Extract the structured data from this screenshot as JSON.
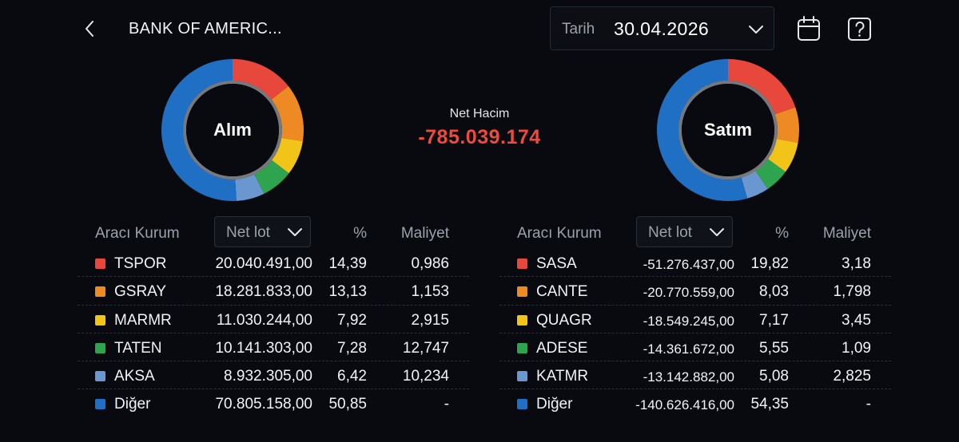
{
  "header": {
    "title": "BANK OF AMERIC...",
    "date_label": "Tarih",
    "date_value": "30.04.2026"
  },
  "net_volume": {
    "label": "Net Hacim",
    "value": "-785.039.174"
  },
  "colors": {
    "background": "#080a10",
    "negative": "#ef4a3c",
    "series": [
      "#e8473b",
      "#ee8a24",
      "#f2c318",
      "#2ea44f",
      "#6a97cf",
      "#1f6fc5"
    ]
  },
  "buy": {
    "donut_label": "Alım",
    "columns": {
      "broker": "Aracı Kurum",
      "lot": "Net lot",
      "pct": "%",
      "cost": "Maliyet"
    },
    "rows": [
      {
        "symbol": "TSPOR",
        "lot": "20.040.491,00",
        "pct": "14,39",
        "cost": "0,986"
      },
      {
        "symbol": "GSRAY",
        "lot": "18.281.833,00",
        "pct": "13,13",
        "cost": "1,153"
      },
      {
        "symbol": "MARMR",
        "lot": "11.030.244,00",
        "pct": "7,92",
        "cost": "2,915"
      },
      {
        "symbol": "TATEN",
        "lot": "10.141.303,00",
        "pct": "7,28",
        "cost": "12,747"
      },
      {
        "symbol": "AKSA",
        "lot": "8.932.305,00",
        "pct": "6,42",
        "cost": "10,234"
      },
      {
        "symbol": "Diğer",
        "lot": "70.805.158,00",
        "pct": "50,85",
        "cost": "-"
      }
    ],
    "shares": [
      14.39,
      13.13,
      7.92,
      7.28,
      6.42,
      50.85
    ]
  },
  "sell": {
    "donut_label": "Satım",
    "columns": {
      "broker": "Aracı Kurum",
      "lot": "Net lot",
      "pct": "%",
      "cost": "Maliyet"
    },
    "rows": [
      {
        "symbol": "SASA",
        "lot": "-51.276.437,00",
        "pct": "19,82",
        "cost": "3,18"
      },
      {
        "symbol": "CANTE",
        "lot": "-20.770.559,00",
        "pct": "8,03",
        "cost": "1,798"
      },
      {
        "symbol": "QUAGR",
        "lot": "-18.549.245,00",
        "pct": "7,17",
        "cost": "3,45"
      },
      {
        "symbol": "ADESE",
        "lot": "-14.361.672,00",
        "pct": "5,55",
        "cost": "1,09"
      },
      {
        "symbol": "KATMR",
        "lot": "-13.142.882,00",
        "pct": "5,08",
        "cost": "2,825"
      },
      {
        "symbol": "Diğer",
        "lot": "-140.626.416,00",
        "pct": "54,35",
        "cost": "-"
      }
    ],
    "shares": [
      19.82,
      8.03,
      7.17,
      5.55,
      5.08,
      54.35
    ]
  }
}
